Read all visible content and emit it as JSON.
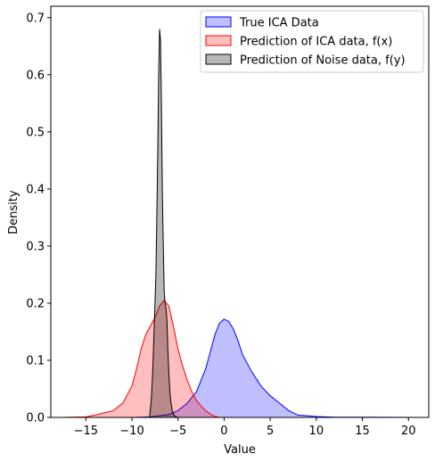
{
  "chart_data": {
    "type": "area",
    "title": "",
    "xlabel": "Value",
    "ylabel": "Density",
    "xlim": [
      -18.8,
      22.2
    ],
    "ylim": [
      0.0,
      0.72
    ],
    "xticks": [
      -15,
      -10,
      -5,
      0,
      5,
      10,
      15,
      20
    ],
    "yticks": [
      0.0,
      0.1,
      0.2,
      0.3,
      0.4,
      0.5,
      0.6,
      0.7
    ],
    "xtick_labels": [
      "−15",
      "−10",
      "−5",
      "0",
      "5",
      "10",
      "15",
      "20"
    ],
    "ytick_labels": [
      "0.0",
      "0.1",
      "0.2",
      "0.3",
      "0.4",
      "0.5",
      "0.6",
      "0.7"
    ],
    "grid": false,
    "legend_position": "upper right",
    "series": [
      {
        "name": "True ICA Data",
        "edge_color": "#0000ff",
        "fill_color": "#0000ff",
        "fill_opacity": 0.25,
        "x": [
          -10.0,
          -8.0,
          -6.0,
          -5.0,
          -4.0,
          -3.0,
          -2.0,
          -1.5,
          -1.0,
          -0.5,
          0.0,
          0.5,
          1.0,
          1.5,
          2.0,
          3.0,
          4.0,
          5.0,
          6.0,
          7.0,
          8.0,
          9.0,
          10.0,
          12.0,
          15.0,
          18.0,
          21.0
        ],
        "y": [
          0.0,
          0.001,
          0.005,
          0.012,
          0.025,
          0.045,
          0.085,
          0.115,
          0.145,
          0.165,
          0.172,
          0.168,
          0.155,
          0.135,
          0.11,
          0.08,
          0.055,
          0.038,
          0.025,
          0.012,
          0.004,
          0.003,
          0.0015,
          0.0005,
          0.0003,
          0.0001,
          0.0
        ]
      },
      {
        "name": "Prediction of ICA data, f(x)",
        "edge_color": "#ff0000",
        "fill_color": "#ff0000",
        "fill_opacity": 0.25,
        "x": [
          -17.5,
          -15.0,
          -14.0,
          -13.0,
          -12.5,
          -12.0,
          -11.0,
          -10.0,
          -9.5,
          -9.0,
          -8.5,
          -8.0,
          -7.5,
          -7.0,
          -6.5,
          -6.0,
          -5.5,
          -5.0,
          -4.5,
          -4.0,
          -3.5,
          -3.0,
          -2.5,
          -2.0,
          -1.5,
          -1.0,
          -0.5
        ],
        "y": [
          0.0,
          0.001,
          0.004,
          0.008,
          0.01,
          0.012,
          0.025,
          0.055,
          0.085,
          0.12,
          0.145,
          0.16,
          0.175,
          0.195,
          0.205,
          0.195,
          0.16,
          0.12,
          0.09,
          0.065,
          0.045,
          0.03,
          0.02,
          0.012,
          0.006,
          0.002,
          0.0
        ]
      },
      {
        "name": "Prediction of Noise data, f(y)",
        "edge_color": "#000000",
        "fill_color": "#000000",
        "fill_opacity": 0.28,
        "x": [
          -8.1,
          -7.9,
          -7.75,
          -7.6,
          -7.5,
          -7.4,
          -7.3,
          -7.2,
          -7.1,
          -7.0,
          -6.9,
          -6.8,
          -6.7,
          -6.6,
          -6.5,
          -6.4,
          -6.3,
          -6.2,
          -6.1,
          -6.0,
          -5.9,
          -5.8,
          -5.6,
          -5.4,
          -5.2,
          -5.0
        ],
        "y": [
          0.0,
          0.03,
          0.08,
          0.15,
          0.2,
          0.25,
          0.35,
          0.47,
          0.6,
          0.68,
          0.66,
          0.55,
          0.4,
          0.3,
          0.22,
          0.2,
          0.19,
          0.17,
          0.12,
          0.08,
          0.05,
          0.03,
          0.01,
          0.003,
          0.001,
          0.0
        ]
      }
    ]
  }
}
